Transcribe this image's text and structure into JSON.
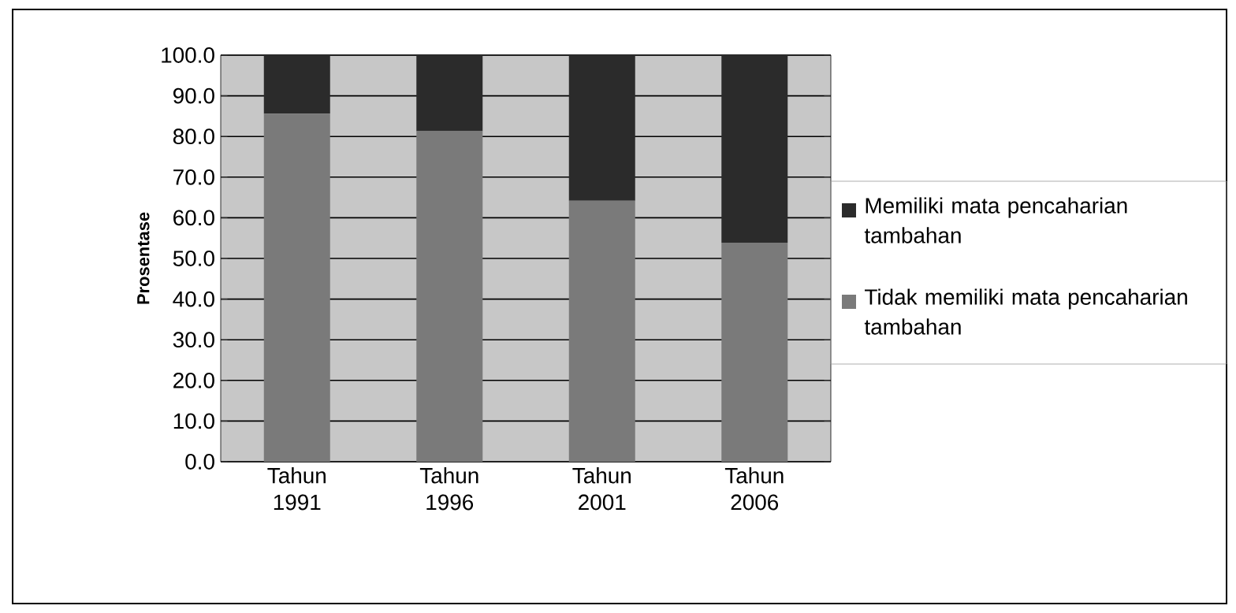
{
  "chart_data": {
    "type": "bar",
    "stacked": true,
    "ylabel": "Prosentase",
    "categories": [
      "Tahun 1991",
      "Tahun 1996",
      "Tahun 2001",
      "Tahun 2006"
    ],
    "series": [
      {
        "name": "Tidak memiliki mata pencaharian tambahan",
        "color": "#7a7a7a",
        "values": [
          85.6,
          81.3,
          64.2,
          53.9
        ]
      },
      {
        "name": "Memiliki mata pencaharian tambahan",
        "color": "#2b2b2b",
        "values": [
          14.4,
          18.7,
          35.8,
          46.1
        ]
      }
    ],
    "ylim": [
      0,
      100
    ],
    "yticks": [
      {
        "value": 0,
        "label": "0.0"
      },
      {
        "value": 10,
        "label": "10.0"
      },
      {
        "value": 20,
        "label": "20.0"
      },
      {
        "value": 30,
        "label": "30.0"
      },
      {
        "value": 40,
        "label": "40.0"
      },
      {
        "value": 50,
        "label": "50.0"
      },
      {
        "value": 60,
        "label": "60.0"
      },
      {
        "value": 70,
        "label": "70.0"
      },
      {
        "value": 80,
        "label": "80.0"
      },
      {
        "value": 90,
        "label": "90.0"
      },
      {
        "value": 100,
        "label": "100.0"
      }
    ],
    "grid": "y",
    "legend": "right"
  }
}
